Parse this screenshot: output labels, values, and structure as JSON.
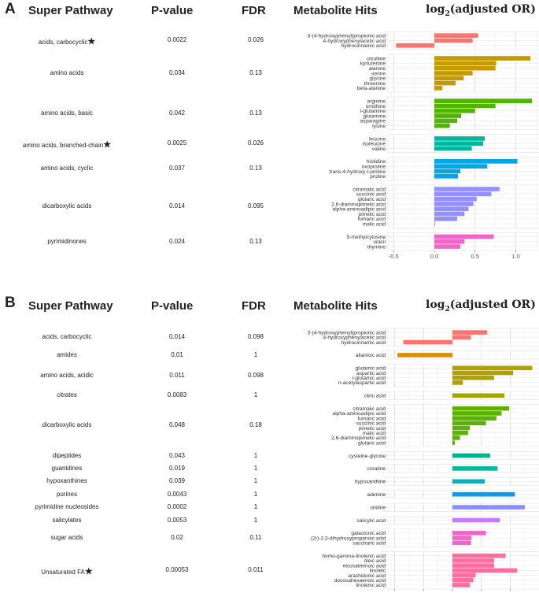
{
  "panels": [
    {
      "letter": "A",
      "headers": {
        "pathway": "Super Pathway",
        "pvalue": "P-value",
        "fdr": "FDR",
        "hits": "Metabolite Hits",
        "or_prefix": "log",
        "or_sub": "2",
        "or_suffix": "(adjusted OR)"
      },
      "rows": [
        {
          "pathway": "acids, carbocyclic",
          "star": "★",
          "pvalue": "0.0022",
          "fdr": "0.026"
        },
        {
          "pathway": "amino acids",
          "star": "",
          "pvalue": "0.034",
          "fdr": "0.13"
        },
        {
          "pathway": "amino acids, basic",
          "star": "",
          "pvalue": "0.042",
          "fdr": "0.13"
        },
        {
          "pathway": "amino acids, branched-chain",
          "star": "★",
          "pvalue": "0.0025",
          "fdr": "0.026"
        },
        {
          "pathway": "amino acids, cyclic",
          "star": "",
          "pvalue": "0.037",
          "fdr": "0.13"
        },
        {
          "pathway": "dicarboxylic acids",
          "star": "",
          "pvalue": "0.014",
          "fdr": "0.095"
        },
        {
          "pathway": "pyrimidinones",
          "star": "",
          "pvalue": "0.024",
          "fdr": "0.13"
        }
      ]
    },
    {
      "letter": "B",
      "headers": {
        "pathway": "Super Pathway",
        "pvalue": "P-value",
        "fdr": "FDR",
        "hits": "Metabolite Hits",
        "or_prefix": "log",
        "or_sub": "2",
        "or_suffix": "(adjusted OR)"
      },
      "rows": [
        {
          "pathway": "acids, carbocyclic",
          "star": "",
          "pvalue": "0.014",
          "fdr": "0.098"
        },
        {
          "pathway": "amides",
          "star": "",
          "pvalue": "0.01",
          "fdr": "1"
        },
        {
          "pathway": "amino acids, acidic",
          "star": "",
          "pvalue": "0.011",
          "fdr": "0.098"
        },
        {
          "pathway": "citrates",
          "star": "",
          "pvalue": "0.0083",
          "fdr": "1"
        },
        {
          "pathway": "dicarboxylic acids",
          "star": "",
          "pvalue": "0.048",
          "fdr": "0.18"
        },
        {
          "pathway": "dipeptides",
          "star": "",
          "pvalue": "0.043",
          "fdr": "1"
        },
        {
          "pathway": "guanidines",
          "star": "",
          "pvalue": "0.019",
          "fdr": "1"
        },
        {
          "pathway": "hypoxanthines",
          "star": "",
          "pvalue": "0.039",
          "fdr": "1"
        },
        {
          "pathway": "purines",
          "star": "",
          "pvalue": "0.0043",
          "fdr": "1"
        },
        {
          "pathway": "pyrimidine nucleosides",
          "star": "",
          "pvalue": "0.0002",
          "fdr": "1"
        },
        {
          "pathway": "salicylates",
          "star": "",
          "pvalue": "0.0053",
          "fdr": "1"
        },
        {
          "pathway": "sugar acids",
          "star": "",
          "pvalue": "0.02",
          "fdr": "0.11"
        },
        {
          "pathway": "Unsaturated FA",
          "star": "★",
          "pvalue": "0.00053",
          "fdr": "0.011"
        }
      ]
    }
  ],
  "chart_data": [
    {
      "type": "bar",
      "orientation": "horizontal",
      "xlim": [
        -0.5,
        1.25
      ],
      "xticks": [
        "-0.5",
        "0.0",
        "0.5",
        "1.0"
      ],
      "xtick_values": [
        -0.5,
        0,
        0.5,
        1
      ],
      "grid": true,
      "groups": [
        {
          "color": "#F8766D",
          "bars": [
            {
              "label": "3-(4-hydroxyphenyl)propionic acid",
              "value": 0.54
            },
            {
              "label": "4-hydroxyphenylacetic acid",
              "value": 0.47
            },
            {
              "label": "hydrocinnamic acid",
              "value": -0.47
            }
          ]
        },
        {
          "color": "#C49A00",
          "bars": [
            {
              "label": "citrulline",
              "value": 1.18
            },
            {
              "label": "kynurenine",
              "value": 0.76
            },
            {
              "label": "alanine",
              "value": 0.75
            },
            {
              "label": "serine",
              "value": 0.47
            },
            {
              "label": "glycine",
              "value": 0.36
            },
            {
              "label": "threonine",
              "value": 0.26
            },
            {
              "label": "beta-alanine",
              "value": 0.1
            }
          ]
        },
        {
          "color": "#53B400",
          "bars": [
            {
              "label": "arginine",
              "value": 1.2
            },
            {
              "label": "ornithine",
              "value": 0.75
            },
            {
              "label": "l-glutamine",
              "value": 0.5
            },
            {
              "label": "glutamine",
              "value": 0.33
            },
            {
              "label": "asparagine",
              "value": 0.28
            },
            {
              "label": "lysine",
              "value": 0.19
            }
          ]
        },
        {
          "color": "#00B6A0",
          "bars": [
            {
              "label": "leucine",
              "value": 0.62
            },
            {
              "label": "isoleucine",
              "value": 0.6
            },
            {
              "label": "valine",
              "value": 0.46
            }
          ]
        },
        {
          "color": "#00A6E6",
          "bars": [
            {
              "label": "histidine",
              "value": 1.02
            },
            {
              "label": "oxoproline",
              "value": 0.65
            },
            {
              "label": "trans-4-hydroxy-l-proline",
              "value": 0.32
            },
            {
              "label": "proline",
              "value": 0.29
            }
          ]
        },
        {
          "color": "#9590FF",
          "bars": [
            {
              "label": "citramalic acid",
              "value": 0.8
            },
            {
              "label": "succinic acid",
              "value": 0.7
            },
            {
              "label": "glutaric acid",
              "value": 0.52
            },
            {
              "label": "2,6-diaminopimelic acid",
              "value": 0.48
            },
            {
              "label": "alpha-aminoadipic acid",
              "value": 0.42
            },
            {
              "label": "pimelic acid",
              "value": 0.37
            },
            {
              "label": "fumaric acid",
              "value": 0.28
            },
            {
              "label": "malic acid",
              "value": 0.01
            }
          ]
        },
        {
          "color": "#F066C8",
          "bars": [
            {
              "label": "5-methylcytosine",
              "value": 0.73
            },
            {
              "label": "uracil",
              "value": 0.37
            },
            {
              "label": "thymine",
              "value": 0.32
            }
          ]
        }
      ]
    },
    {
      "type": "bar",
      "orientation": "horizontal",
      "xlim": [
        -1.2,
        1.45
      ],
      "xticks": [
        "-1.0",
        "-0.5",
        "0.0",
        "0.5",
        "1.0"
      ],
      "xtick_values": [
        -1,
        -0.5,
        0,
        0.5,
        1
      ],
      "grid": true,
      "groups": [
        {
          "color": "#F8766D",
          "bars": [
            {
              "label": "3-(4-hydroxyphenyl)propionic acid",
              "value": 0.6
            },
            {
              "label": "4-hydroxyphenylacetic acid",
              "value": 0.32
            },
            {
              "label": "hydrocinnamic acid",
              "value": -0.85
            }
          ]
        },
        {
          "color": "#DB8E00",
          "bars": [
            {
              "label": "allantoic acid",
              "value": -0.95
            }
          ]
        },
        {
          "color": "#AEA200",
          "bars": [
            {
              "label": "glutamic acid",
              "value": 1.38
            },
            {
              "label": "aspartic acid",
              "value": 1.05
            },
            {
              "label": "l-glutamic acid",
              "value": 0.72
            },
            {
              "label": "n-acetylaspartic acid",
              "value": 0.18
            }
          ]
        },
        {
          "color": "#A3A500",
          "bars": [
            {
              "label": "citric acid",
              "value": 0.9
            }
          ]
        },
        {
          "color": "#5BB300",
          "bars": [
            {
              "label": "citramalic acid",
              "value": 0.98
            },
            {
              "label": "alpha-aminoadipic acid",
              "value": 0.85
            },
            {
              "label": "fumaric acid",
              "value": 0.76
            },
            {
              "label": "succinic acid",
              "value": 0.58
            },
            {
              "label": "pimelic acid",
              "value": 0.3
            },
            {
              "label": "malic acid",
              "value": 0.27
            },
            {
              "label": "2,6-diaminopimelic acid",
              "value": 0.13
            },
            {
              "label": "glutaric acid",
              "value": 0.04
            }
          ]
        },
        {
          "color": "#00B08E",
          "bars": [
            {
              "label": "cysteine-glycine",
              "value": 0.65
            }
          ]
        },
        {
          "color": "#00BA9C",
          "bars": [
            {
              "label": "creatine",
              "value": 0.78
            }
          ]
        },
        {
          "color": "#00B3C2",
          "bars": [
            {
              "label": "hypoxanthine",
              "value": 0.56
            }
          ]
        },
        {
          "color": "#0A9AF0",
          "bars": [
            {
              "label": "adenine",
              "value": 1.08
            }
          ]
        },
        {
          "color": "#8A8CFF",
          "bars": [
            {
              "label": "uridine",
              "value": 1.25
            }
          ]
        },
        {
          "color": "#C77CFF",
          "bars": [
            {
              "label": "salicylic acid",
              "value": 0.82
            }
          ]
        },
        {
          "color": "#F066C8",
          "bars": [
            {
              "label": "galactonic acid",
              "value": 0.58
            },
            {
              "label": "(2r)-2,3-dihydroxypropanoic acid",
              "value": 0.33
            },
            {
              "label": "saccharic acid",
              "value": 0.32
            }
          ]
        },
        {
          "color": "#FF6C9E",
          "bars": [
            {
              "label": "homo-gamma-linolenic acid",
              "value": 0.92
            },
            {
              "label": "oleic acid",
              "value": 0.72
            },
            {
              "label": "eicosatrienoic acid",
              "value": 0.72
            },
            {
              "label": "linoleic",
              "value": 1.12
            },
            {
              "label": "arachidonic acid",
              "value": 0.4
            },
            {
              "label": "docosahexaenoic acid",
              "value": 0.36
            },
            {
              "label": "linolenic acid",
              "value": 0.3
            }
          ]
        }
      ]
    }
  ]
}
